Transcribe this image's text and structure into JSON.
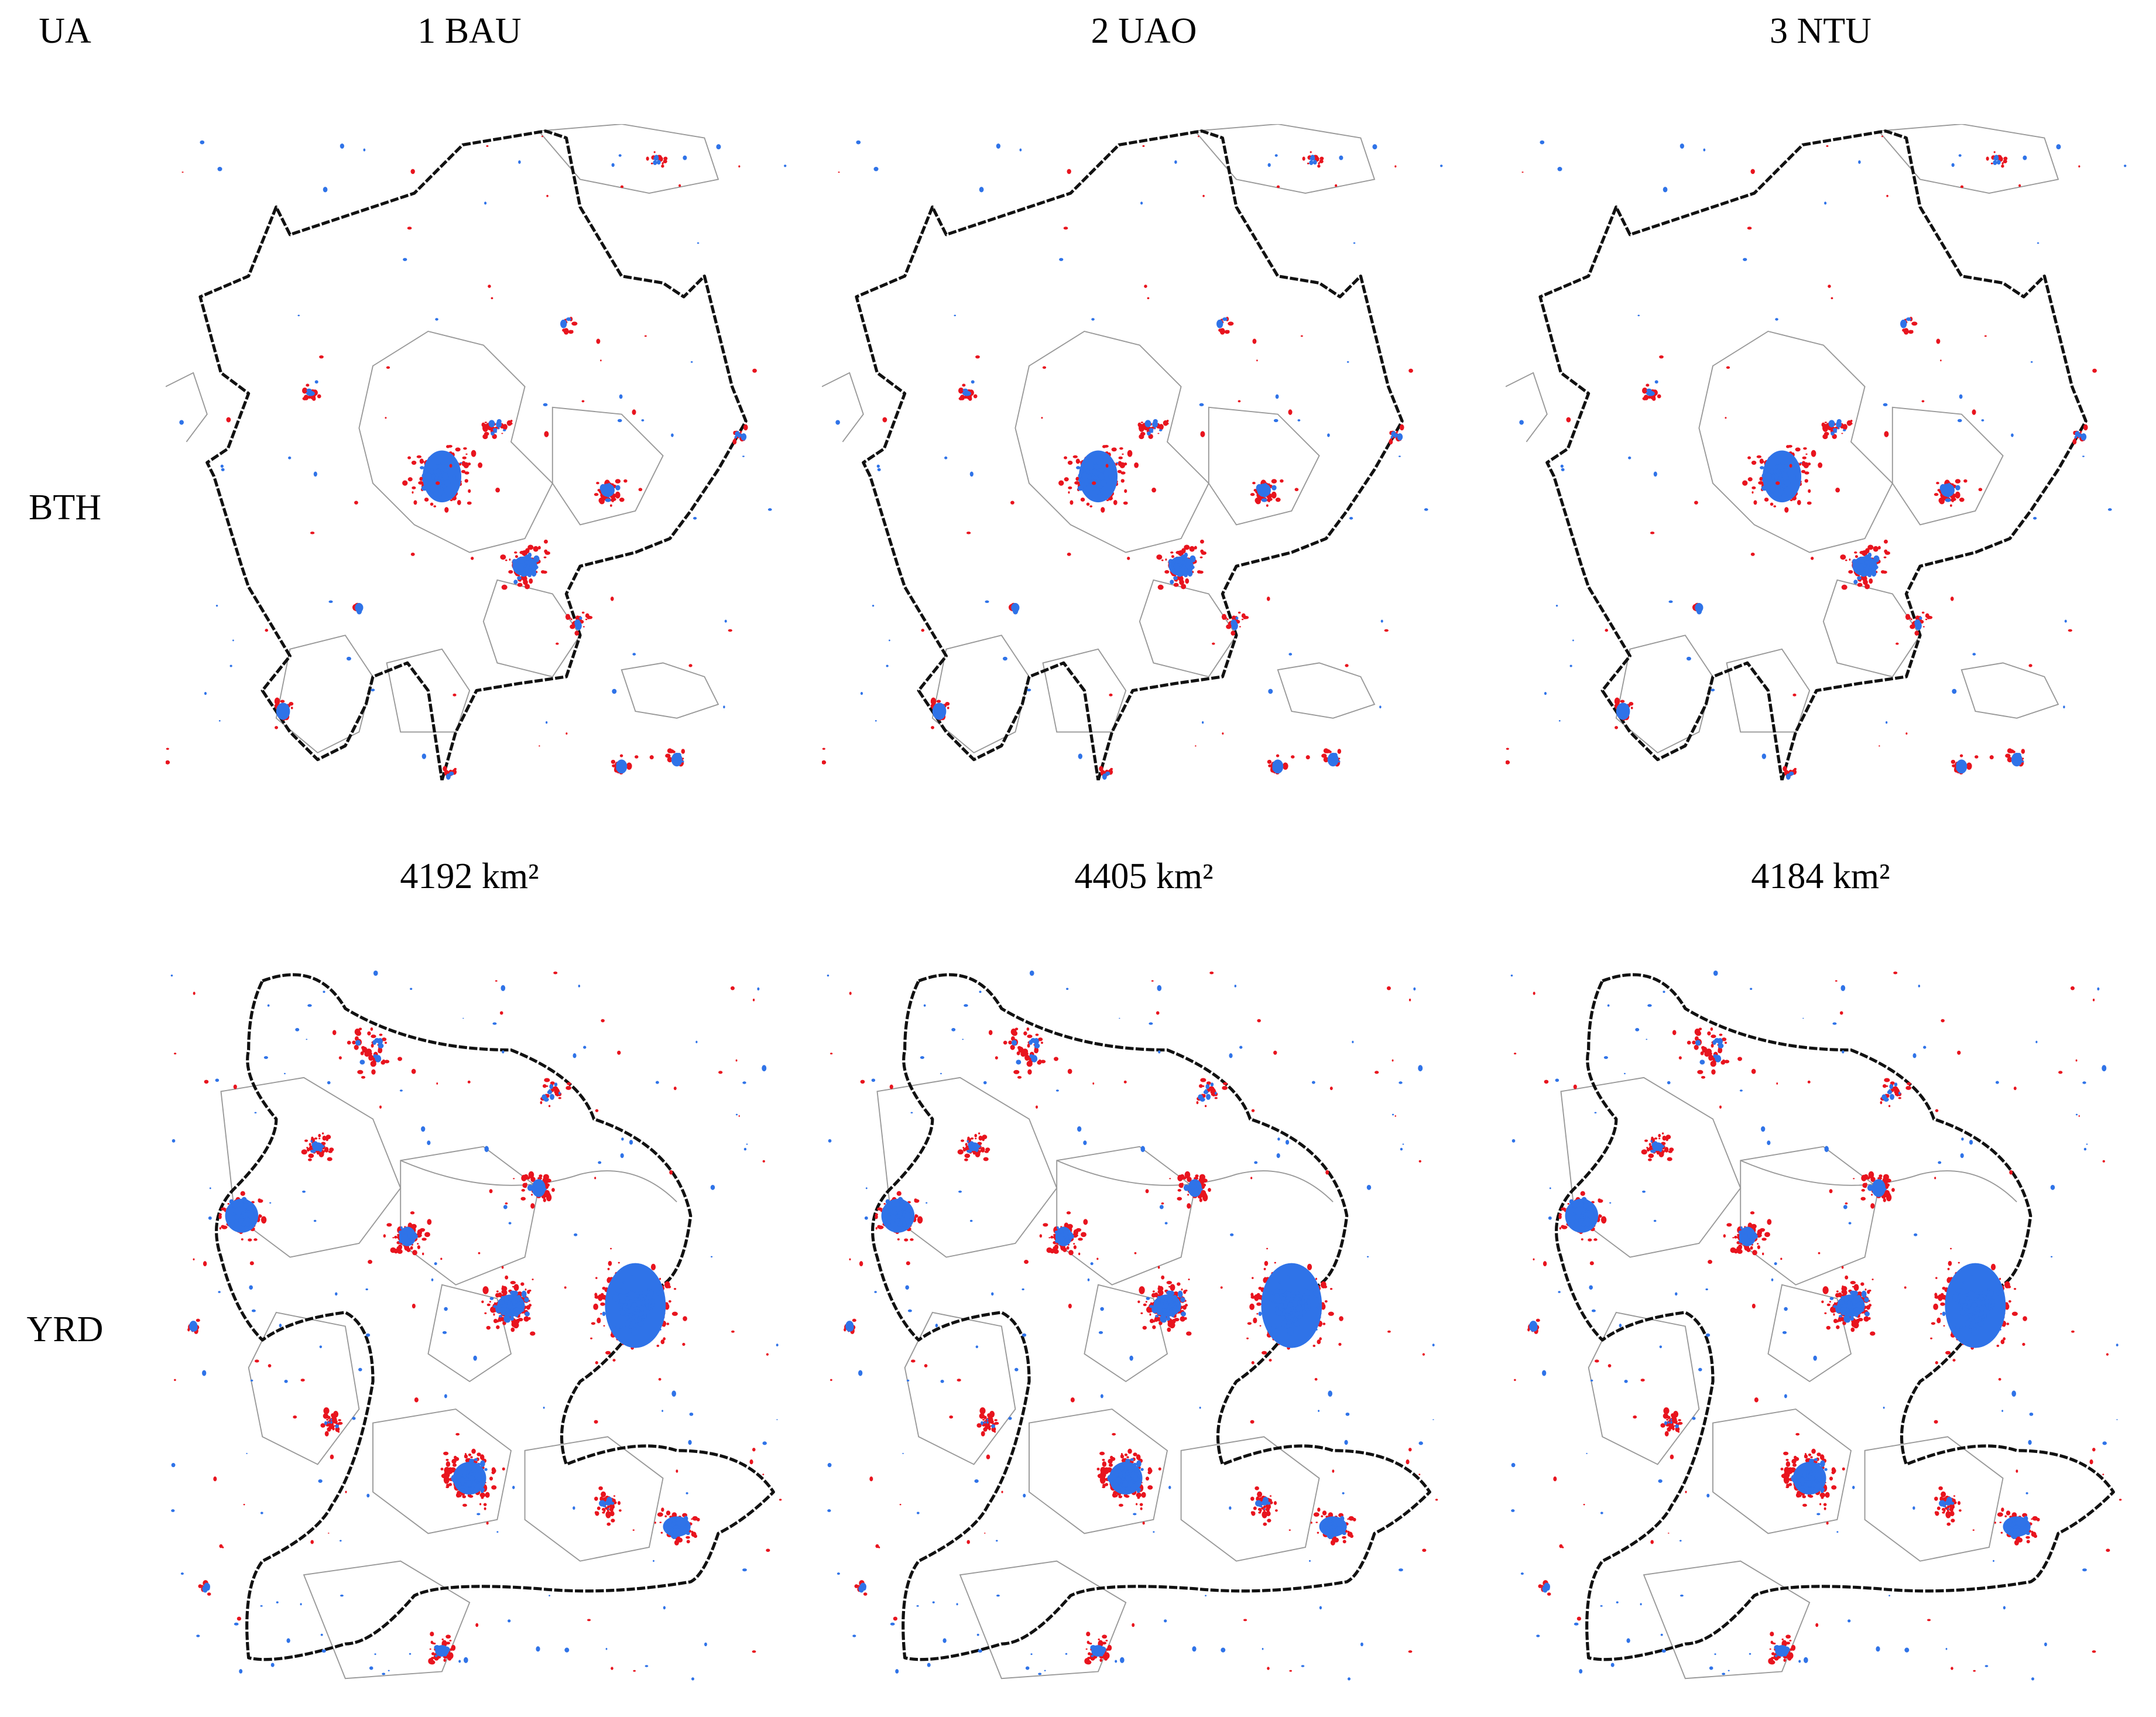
{
  "header": {
    "corner": "UA",
    "columns": [
      "1 BAU",
      "2 UAO",
      "3 NTU"
    ]
  },
  "rows": [
    {
      "label": "BTH",
      "areas": [
        "4192 km²",
        "4405 km²",
        "4184 km²"
      ]
    },
    {
      "label": "YRD"
    }
  ]
}
